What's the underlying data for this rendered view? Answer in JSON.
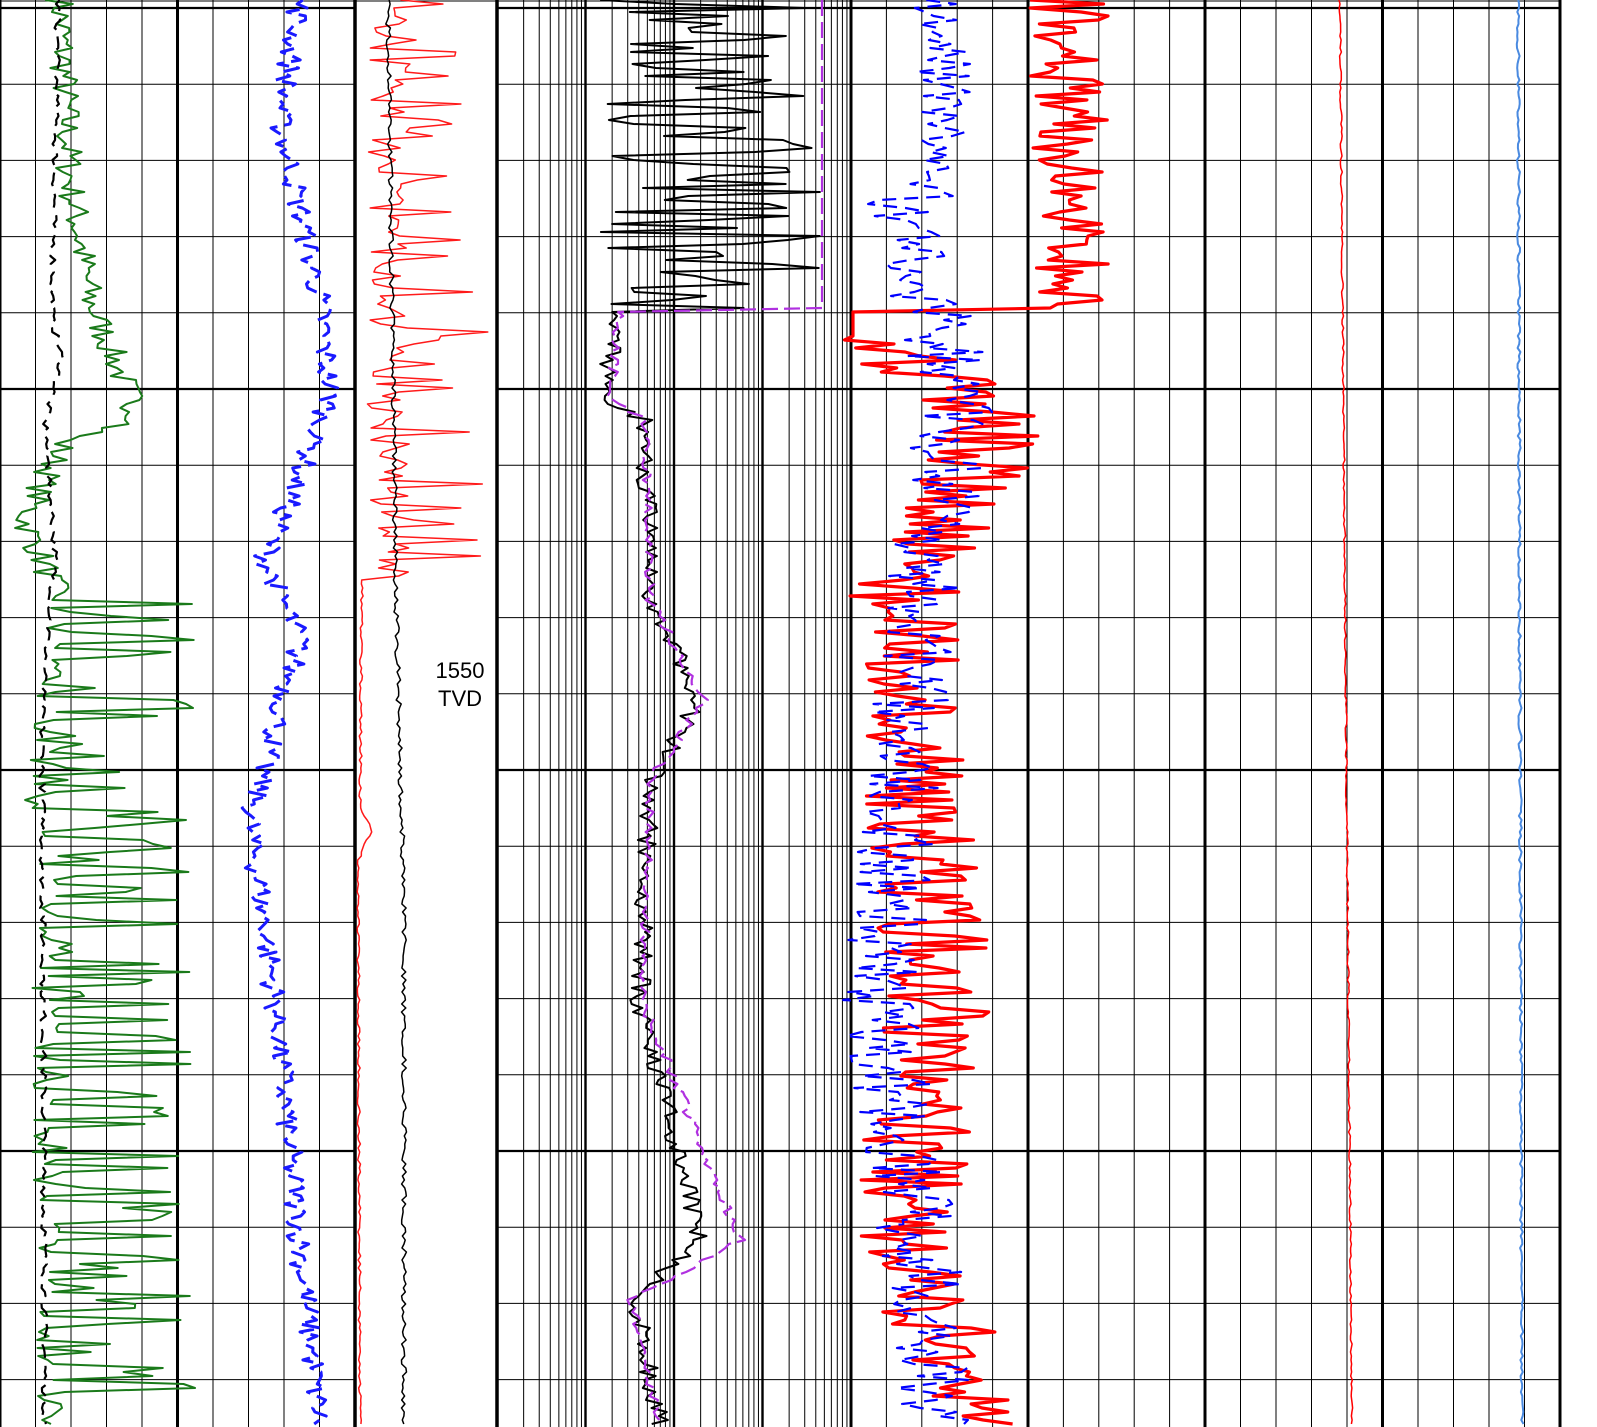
{
  "depth": {
    "value_label": "1550",
    "unit_label": "TVD"
  },
  "colors": {
    "gamma_ray": "#1a7a1a",
    "caliper": "#000000",
    "sp": "#1a1aff",
    "red_track": "#ff1a1a",
    "black_track": "#000000",
    "resistivity_shallow": "#000000",
    "resistivity_deep": "#b030e0",
    "porosity_a": "#ff0000",
    "porosity_b": "#0000ff",
    "track5_red": "#ff0000",
    "track5_blue": "#4a8ae0"
  },
  "chart_data": {
    "type": "line",
    "title": "",
    "xlabel": "",
    "ylabel": "",
    "depth_range_fraction": [
      0,
      1
    ],
    "grid": true,
    "tracks": [
      {
        "name": "",
        "scale": "linear",
        "series": [
          "gamma_ray",
          "caliper",
          "sp"
        ]
      },
      {
        "name": "",
        "scale": "linear",
        "series": [
          "red_track",
          "black_track"
        ]
      },
      {
        "name": "",
        "scale": "log",
        "series": [
          "resistivity_shallow",
          "resistivity_deep"
        ]
      },
      {
        "name": "",
        "scale": "linear",
        "series": [
          "porosity_a",
          "porosity_b"
        ]
      },
      {
        "name": "",
        "scale": "linear",
        "series": [
          "track5_red",
          "track5_blue"
        ]
      }
    ]
  }
}
